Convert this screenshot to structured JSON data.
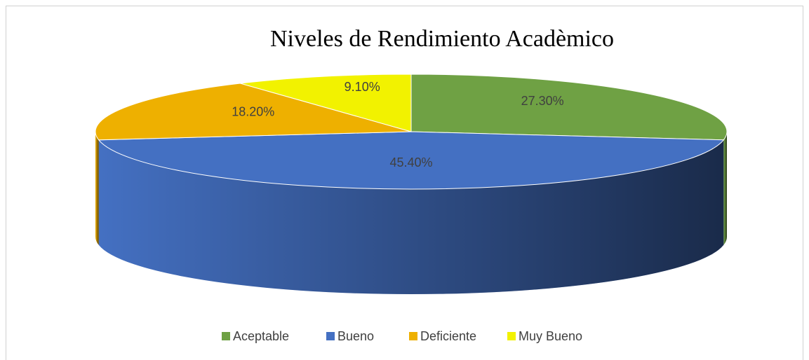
{
  "chart_data": {
    "type": "pie3d",
    "title": "Niveles de Rendimiento Acadèmico",
    "categories": [
      "Aceptable",
      "Bueno",
      "Deficiente",
      "Muy Bueno"
    ],
    "values": [
      27.3,
      45.4,
      18.2,
      9.1
    ],
    "value_labels": [
      "27.30%",
      "45.40%",
      "18.20%",
      "9.10%"
    ],
    "colors": [
      "#6fa144",
      "#4470c2",
      "#eeb000",
      "#f2f200"
    ],
    "legend": "bottom"
  }
}
